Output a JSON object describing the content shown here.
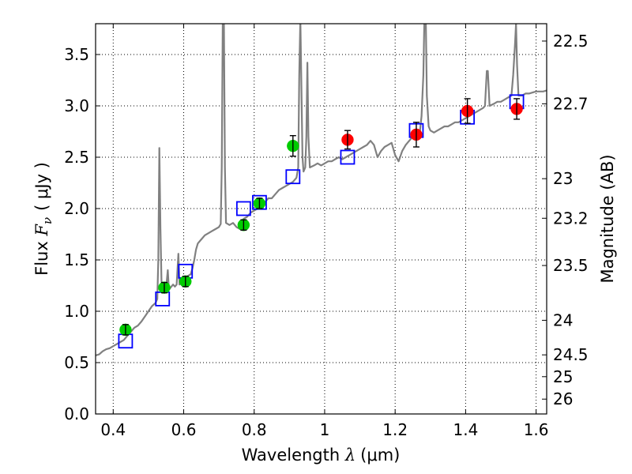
{
  "chart_data": {
    "type": "scatter",
    "title": "",
    "xlabel_prefix": "Wavelength  ",
    "xlabel_symbol": "λ",
    "xlabel_unit": "(μm)",
    "ylabel_prefix": "Flux  ",
    "ylabel_symbol": "F",
    "ylabel_subscript": "ν",
    "ylabel_unit": "( μJy )",
    "y2label": "Magnitude (AB)",
    "xlim": [
      0.35,
      1.63
    ],
    "ylim": [
      0.0,
      3.8
    ],
    "grid": true,
    "x_ticks": [
      {
        "value": 0.4,
        "label": "0.4"
      },
      {
        "value": 0.6,
        "label": "0.6"
      },
      {
        "value": 0.8,
        "label": "0.8"
      },
      {
        "value": 1.0,
        "label": "1"
      },
      {
        "value": 1.2,
        "label": "1.2"
      },
      {
        "value": 1.4,
        "label": "1.4"
      },
      {
        "value": 1.6,
        "label": "1.6"
      }
    ],
    "y_ticks": [
      {
        "value": 0.0,
        "label": "0.0"
      },
      {
        "value": 0.5,
        "label": "0.5"
      },
      {
        "value": 1.0,
        "label": "1.0"
      },
      {
        "value": 1.5,
        "label": "1.5"
      },
      {
        "value": 2.0,
        "label": "2.0"
      },
      {
        "value": 2.5,
        "label": "2.5"
      },
      {
        "value": 3.0,
        "label": "3.0"
      },
      {
        "value": 3.5,
        "label": "3.5"
      }
    ],
    "y2_ticks": [
      {
        "value": 22.5,
        "label": "22.5"
      },
      {
        "value": 22.7,
        "label": "22.7"
      },
      {
        "value": 23,
        "label": "23"
      },
      {
        "value": 23.2,
        "label": "23.2"
      },
      {
        "value": 23.5,
        "label": "23.5"
      },
      {
        "value": 24,
        "label": "24"
      },
      {
        "value": 24.5,
        "label": "24.5"
      },
      {
        "value": 25,
        "label": "25"
      },
      {
        "value": 26,
        "label": "26"
      }
    ],
    "series": [
      {
        "kind": "spectrum",
        "color": "#808080",
        "points": [
          [
            0.35,
            0.57
          ],
          [
            0.36,
            0.58
          ],
          [
            0.37,
            0.61
          ],
          [
            0.38,
            0.63
          ],
          [
            0.39,
            0.64
          ],
          [
            0.4,
            0.66
          ],
          [
            0.41,
            0.68
          ],
          [
            0.42,
            0.7
          ],
          [
            0.43,
            0.72
          ],
          [
            0.44,
            0.76
          ],
          [
            0.45,
            0.8
          ],
          [
            0.46,
            0.84
          ],
          [
            0.47,
            0.86
          ],
          [
            0.48,
            0.9
          ],
          [
            0.49,
            0.95
          ],
          [
            0.5,
            1.0
          ],
          [
            0.51,
            1.05
          ],
          [
            0.52,
            1.08
          ],
          [
            0.525,
            1.12
          ],
          [
            0.528,
            1.5
          ],
          [
            0.531,
            2.59
          ],
          [
            0.534,
            1.8
          ],
          [
            0.537,
            1.3
          ],
          [
            0.54,
            1.18
          ],
          [
            0.55,
            1.22
          ],
          [
            0.555,
            1.4
          ],
          [
            0.558,
            1.21
          ],
          [
            0.565,
            1.24
          ],
          [
            0.57,
            1.26
          ],
          [
            0.575,
            1.24
          ],
          [
            0.58,
            1.26
          ],
          [
            0.585,
            1.56
          ],
          [
            0.588,
            1.26
          ],
          [
            0.595,
            1.3
          ],
          [
            0.6,
            1.3
          ],
          [
            0.605,
            1.33
          ],
          [
            0.61,
            1.34
          ],
          [
            0.62,
            1.36
          ],
          [
            0.625,
            1.42
          ],
          [
            0.63,
            1.5
          ],
          [
            0.635,
            1.6
          ],
          [
            0.64,
            1.66
          ],
          [
            0.65,
            1.7
          ],
          [
            0.66,
            1.74
          ],
          [
            0.67,
            1.76
          ],
          [
            0.68,
            1.78
          ],
          [
            0.69,
            1.8
          ],
          [
            0.7,
            1.82
          ],
          [
            0.705,
            1.85
          ],
          [
            0.708,
            2.4
          ],
          [
            0.711,
            3.85
          ],
          [
            0.714,
            3.85
          ],
          [
            0.717,
            2.4
          ],
          [
            0.72,
            1.86
          ],
          [
            0.73,
            1.84
          ],
          [
            0.74,
            1.86
          ],
          [
            0.75,
            1.82
          ],
          [
            0.76,
            1.8
          ],
          [
            0.765,
            1.86
          ],
          [
            0.77,
            1.9
          ],
          [
            0.78,
            1.92
          ],
          [
            0.79,
            1.96
          ],
          [
            0.8,
            1.98
          ],
          [
            0.81,
            2.0
          ],
          [
            0.82,
            2.04
          ],
          [
            0.83,
            2.06
          ],
          [
            0.84,
            2.1
          ],
          [
            0.85,
            2.1
          ],
          [
            0.86,
            2.14
          ],
          [
            0.87,
            2.18
          ],
          [
            0.88,
            2.2
          ],
          [
            0.89,
            2.22
          ],
          [
            0.9,
            2.24
          ],
          [
            0.91,
            2.26
          ],
          [
            0.92,
            2.3
          ],
          [
            0.925,
            2.4
          ],
          [
            0.928,
            3.3
          ],
          [
            0.931,
            3.85
          ],
          [
            0.934,
            3.2
          ],
          [
            0.937,
            2.5
          ],
          [
            0.94,
            2.36
          ],
          [
            0.945,
            2.4
          ],
          [
            0.948,
            2.7
          ],
          [
            0.951,
            3.42
          ],
          [
            0.954,
            2.7
          ],
          [
            0.958,
            2.4
          ],
          [
            0.97,
            2.42
          ],
          [
            0.98,
            2.44
          ],
          [
            0.99,
            2.42
          ],
          [
            1.0,
            2.44
          ],
          [
            1.01,
            2.46
          ],
          [
            1.02,
            2.46
          ],
          [
            1.03,
            2.48
          ],
          [
            1.04,
            2.5
          ],
          [
            1.05,
            2.48
          ],
          [
            1.06,
            2.5
          ],
          [
            1.07,
            2.52
          ],
          [
            1.08,
            2.54
          ],
          [
            1.09,
            2.56
          ],
          [
            1.1,
            2.58
          ],
          [
            1.11,
            2.6
          ],
          [
            1.12,
            2.62
          ],
          [
            1.13,
            2.66
          ],
          [
            1.14,
            2.62
          ],
          [
            1.15,
            2.5
          ],
          [
            1.16,
            2.56
          ],
          [
            1.17,
            2.6
          ],
          [
            1.18,
            2.62
          ],
          [
            1.19,
            2.64
          ],
          [
            1.2,
            2.52
          ],
          [
            1.21,
            2.46
          ],
          [
            1.22,
            2.56
          ],
          [
            1.23,
            2.62
          ],
          [
            1.24,
            2.66
          ],
          [
            1.25,
            2.7
          ],
          [
            1.26,
            2.72
          ],
          [
            1.27,
            2.74
          ],
          [
            1.275,
            2.9
          ],
          [
            1.28,
            3.3
          ],
          [
            1.283,
            3.85
          ],
          [
            1.287,
            3.85
          ],
          [
            1.29,
            3.1
          ],
          [
            1.295,
            2.8
          ],
          [
            1.3,
            2.76
          ],
          [
            1.31,
            2.74
          ],
          [
            1.32,
            2.76
          ],
          [
            1.33,
            2.78
          ],
          [
            1.34,
            2.8
          ],
          [
            1.35,
            2.8
          ],
          [
            1.36,
            2.82
          ],
          [
            1.37,
            2.84
          ],
          [
            1.38,
            2.84
          ],
          [
            1.39,
            2.86
          ],
          [
            1.4,
            2.88
          ],
          [
            1.41,
            2.9
          ],
          [
            1.42,
            2.92
          ],
          [
            1.43,
            2.94
          ],
          [
            1.44,
            2.96
          ],
          [
            1.45,
            2.98
          ],
          [
            1.455,
            3.0
          ],
          [
            1.46,
            3.34
          ],
          [
            1.463,
            3.34
          ],
          [
            1.468,
            3.0
          ],
          [
            1.48,
            3.02
          ],
          [
            1.49,
            3.04
          ],
          [
            1.5,
            3.04
          ],
          [
            1.51,
            3.06
          ],
          [
            1.52,
            3.08
          ],
          [
            1.53,
            3.1
          ],
          [
            1.535,
            3.3
          ],
          [
            1.54,
            3.6
          ],
          [
            1.543,
            3.8
          ],
          [
            1.546,
            3.4
          ],
          [
            1.55,
            3.1
          ],
          [
            1.56,
            3.1
          ],
          [
            1.57,
            3.12
          ],
          [
            1.58,
            3.12
          ],
          [
            1.59,
            3.13
          ],
          [
            1.6,
            3.14
          ],
          [
            1.61,
            3.14
          ],
          [
            1.62,
            3.14
          ],
          [
            1.63,
            3.15
          ]
        ]
      },
      {
        "kind": "model-photometry",
        "marker": "open-square",
        "color": "#0000ff",
        "points": [
          [
            0.435,
            0.71
          ],
          [
            0.54,
            1.12
          ],
          [
            0.605,
            1.39
          ],
          [
            0.77,
            2.0
          ],
          [
            0.815,
            2.06
          ],
          [
            0.91,
            2.31
          ],
          [
            1.065,
            2.5
          ],
          [
            1.26,
            2.76
          ],
          [
            1.405,
            2.89
          ],
          [
            1.545,
            3.04
          ]
        ]
      },
      {
        "kind": "observed-optical",
        "marker": "filled-circle",
        "color": "#00cc00",
        "points": [
          {
            "x": 0.435,
            "y": 0.82,
            "err": 0.05
          },
          {
            "x": 0.545,
            "y": 1.23,
            "err": 0.05
          },
          {
            "x": 0.605,
            "y": 1.29,
            "err": 0.05
          },
          {
            "x": 0.77,
            "y": 1.84,
            "err": 0.05
          },
          {
            "x": 0.815,
            "y": 2.05,
            "err": 0.05
          },
          {
            "x": 0.91,
            "y": 2.61,
            "err": 0.1
          }
        ]
      },
      {
        "kind": "observed-infrared",
        "marker": "filled-circle",
        "color": "#ff0000",
        "points": [
          {
            "x": 1.065,
            "y": 2.67,
            "err": 0.09
          },
          {
            "x": 1.26,
            "y": 2.72,
            "err": 0.12
          },
          {
            "x": 1.405,
            "y": 2.95,
            "err": 0.12
          },
          {
            "x": 1.545,
            "y": 2.97,
            "err": 0.1
          }
        ]
      }
    ]
  }
}
